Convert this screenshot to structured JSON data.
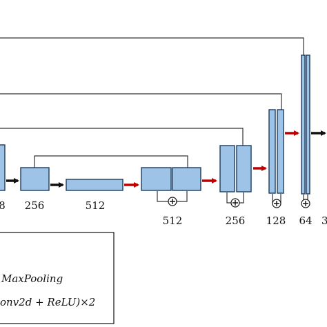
{
  "labels": {
    "l8": "8",
    "l256a": "256",
    "l512a": "512",
    "l512b": "512",
    "l256b": "256",
    "l128": "128",
    "l64": "64",
    "l3": "3"
  },
  "legend": {
    "line1": "MaxPooling",
    "line2": "onv2d + ReLU)×2"
  },
  "colors": {
    "block_fill": "#9dc3e6",
    "block_stroke": "#1f3b5c",
    "red_arrow": "#c00000",
    "black_arrow": "#111111"
  }
}
